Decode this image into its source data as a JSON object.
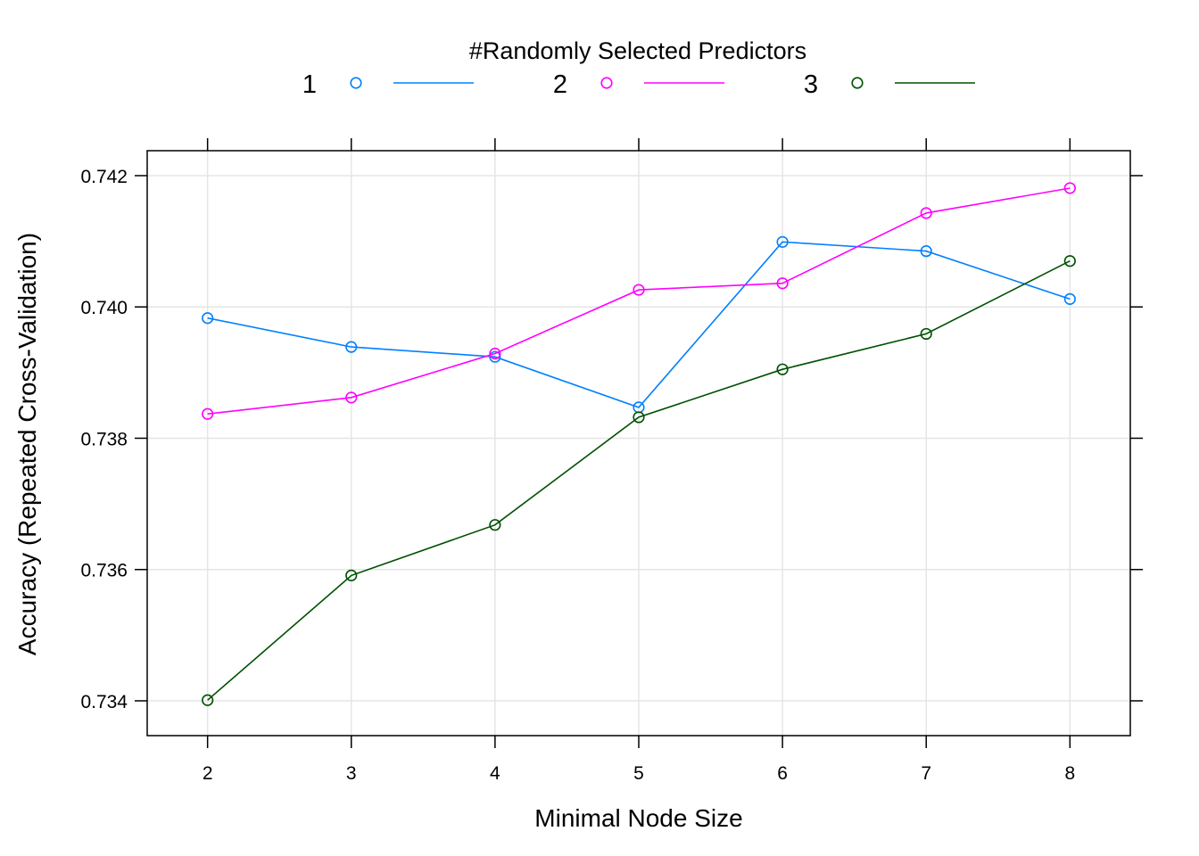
{
  "chart_data": {
    "type": "line",
    "xlabel": "Minimal Node Size",
    "ylabel": "Accuracy (Repeated Cross-Validation)",
    "legend": {
      "title": "#Randomly Selected Predictors",
      "placement": "top"
    },
    "grid": true,
    "x": [
      2,
      3,
      4,
      5,
      6,
      7,
      8
    ],
    "xlim": [
      1.58,
      8.42
    ],
    "ylim": [
      0.73347,
      0.74238
    ],
    "x_ticks": [
      2,
      3,
      4,
      5,
      6,
      7,
      8
    ],
    "y_ticks": [
      0.734,
      0.736,
      0.738,
      0.74,
      0.742
    ],
    "x_tick_labels": [
      "2",
      "3",
      "4",
      "5",
      "6",
      "7",
      "8"
    ],
    "y_tick_labels": [
      "0.734",
      "0.736",
      "0.738",
      "0.740",
      "0.742"
    ],
    "series": [
      {
        "name": "1",
        "color": "#0080ff",
        "values": [
          0.73983,
          0.73939,
          0.73924,
          0.73847,
          0.74099,
          0.74085,
          0.74012
        ]
      },
      {
        "name": "2",
        "color": "#ff00ff",
        "values": [
          0.73837,
          0.73862,
          0.73929,
          0.74026,
          0.74036,
          0.74143,
          0.74181
        ]
      },
      {
        "name": "3",
        "color": "#005000",
        "values": [
          0.73401,
          0.73591,
          0.73668,
          0.73832,
          0.73905,
          0.73959,
          0.7407
        ]
      }
    ]
  }
}
